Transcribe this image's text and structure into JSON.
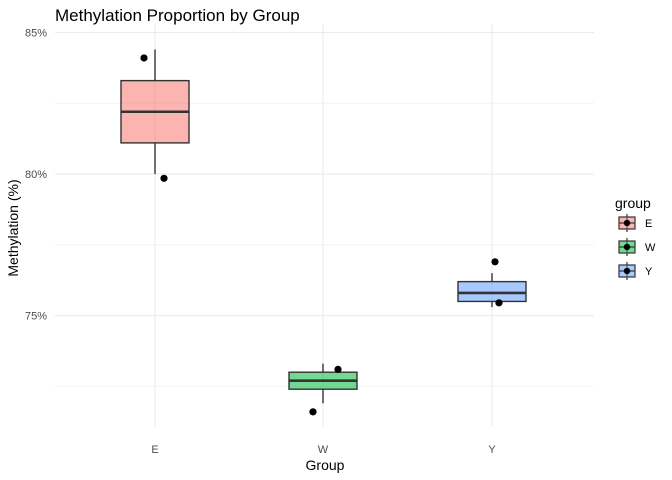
{
  "chart_data": {
    "type": "box",
    "title": "Methylation Proportion by Group",
    "xlabel": "Group",
    "ylabel": "Methylation (%)",
    "ylim": [
      71.1,
      85.3
    ],
    "y_ticks": [
      75,
      80,
      85
    ],
    "y_tick_labels": [
      "85%",
      "80%",
      "75%"
    ],
    "categories": [
      "E",
      "W",
      "Y"
    ],
    "grid": true,
    "legend": {
      "title": "group",
      "position": "right",
      "entries": [
        "E",
        "W",
        "Y"
      ]
    },
    "series": [
      {
        "name": "E",
        "color": "#F8766D",
        "whisker_low": 80.0,
        "q1": 81.1,
        "median": 82.2,
        "q3": 83.3,
        "whisker_high": 84.4,
        "points": [
          {
            "x": "E",
            "y": 84.1
          },
          {
            "x": "E",
            "y": 79.85
          }
        ]
      },
      {
        "name": "W",
        "color": "#00BA38",
        "whisker_low": 71.9,
        "q1": 72.4,
        "median": 72.7,
        "q3": 73.0,
        "whisker_high": 73.3,
        "points": [
          {
            "x": "W",
            "y": 73.1
          },
          {
            "x": "W",
            "y": 71.6
          }
        ]
      },
      {
        "name": "Y",
        "color": "#619CFF",
        "whisker_low": 75.3,
        "q1": 75.5,
        "median": 75.8,
        "q3": 76.2,
        "whisker_high": 76.5,
        "points": [
          {
            "x": "Y",
            "y": 76.9
          },
          {
            "x": "Y",
            "y": 75.45
          }
        ]
      }
    ]
  }
}
